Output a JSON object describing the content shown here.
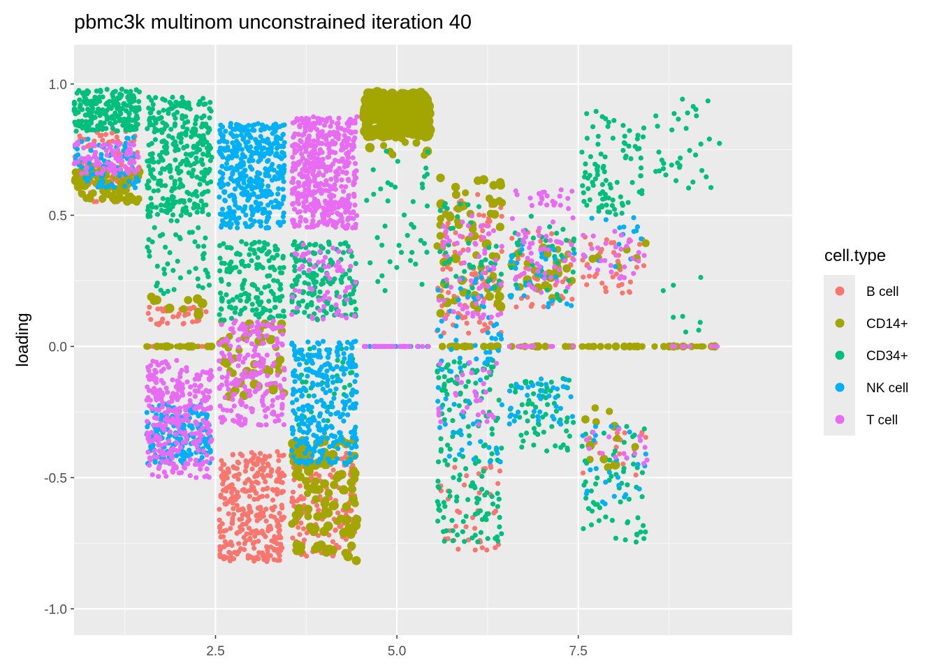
{
  "chart_data": {
    "type": "scatter",
    "title": "pbmc3k multinom unconstrained iteration 40",
    "xlabel": "",
    "ylabel": "loading",
    "xlim": [
      0.55,
      10.45
    ],
    "ylim": [
      -1.1,
      1.15
    ],
    "x_ticks": [
      2.5,
      5.0,
      7.5
    ],
    "x_tick_labels": [
      "2.5",
      "5.0",
      "7.5"
    ],
    "y_ticks": [
      1.0,
      0.5,
      0.0,
      -0.5,
      -1.0
    ],
    "y_tick_labels": [
      "1.0",
      "0.5",
      "0.0",
      "-0.5",
      "-1.0"
    ],
    "grid": true,
    "legend": {
      "title": "cell.type",
      "placement": "right",
      "entries": [
        {
          "label": "B cell",
          "color": "#F8766D"
        },
        {
          "label": "CD14+",
          "color": "#A3A500"
        },
        {
          "label": "CD34+",
          "color": "#00BF7D"
        },
        {
          "label": "NK cell",
          "color": "#00B0F6"
        },
        {
          "label": "T cell",
          "color": "#E76BF3"
        }
      ]
    },
    "colors": {
      "panel_bg": "#EBEBEB",
      "grid_major": "#FFFFFF",
      "grid_minor": "#F7F7F7"
    },
    "jitter_width": 0.45,
    "series": [
      {
        "name": "B cell",
        "color": "#F8766D",
        "clusters": [
          {
            "x": 1,
            "y": [
              0.55,
              0.82
            ],
            "n": 110
          },
          {
            "x": 2,
            "y": [
              0.08,
              0.15
            ],
            "n": 40
          },
          {
            "x": 2,
            "y": [
              0.0,
              0.0
            ],
            "n": 18
          },
          {
            "x": 3,
            "y": [
              -0.82,
              -0.4
            ],
            "n": 320
          },
          {
            "x": 4,
            "y": [
              -0.8,
              -0.4
            ],
            "n": 170
          },
          {
            "x": 6,
            "y": [
              0.05,
              0.6
            ],
            "n": 120
          },
          {
            "x": 6,
            "y": [
              -0.78,
              -0.45
            ],
            "n": 40
          },
          {
            "x": 7,
            "y": [
              0.15,
              0.45
            ],
            "n": 40
          },
          {
            "x": 8,
            "y": [
              0.2,
              0.42
            ],
            "n": 40
          },
          {
            "x": 8,
            "y": [
              -0.5,
              -0.3
            ],
            "n": 18
          }
        ]
      },
      {
        "name": "CD14+",
        "color": "#A3A500",
        "clusters": [
          {
            "x": 1,
            "y": [
              0.55,
              0.68
            ],
            "n": 70,
            "size": 7
          },
          {
            "x": 2,
            "y": [
              0.12,
              0.2
            ],
            "n": 10,
            "size": 7
          },
          {
            "x": 2,
            "y": [
              0.0,
              0.0
            ],
            "n": 25,
            "size": 6
          },
          {
            "x": 3,
            "y": [
              -0.2,
              0.1
            ],
            "n": 50,
            "size": 7
          },
          {
            "x": 4,
            "y": [
              -0.82,
              -0.35
            ],
            "n": 110,
            "size": 7
          },
          {
            "x": 5,
            "y": [
              0.8,
              0.97
            ],
            "n": 240,
            "size": 8
          },
          {
            "x": 5,
            "y": [
              0.72,
              0.8
            ],
            "n": 10,
            "size": 7
          },
          {
            "x": 6,
            "y": [
              0.1,
              0.65
            ],
            "n": 60,
            "size": 7
          },
          {
            "x": 6,
            "y": [
              0.0,
              0.0
            ],
            "n": 18,
            "size": 6
          },
          {
            "x": 7,
            "y": [
              0.18,
              0.38
            ],
            "n": 25,
            "size": 7
          },
          {
            "x": 7,
            "y": [
              0.0,
              0.0
            ],
            "n": 18,
            "size": 6
          },
          {
            "x": 8,
            "y": [
              0.3,
              0.4
            ],
            "n": 6,
            "size": 7
          },
          {
            "x": 8,
            "y": [
              0.0,
              0.0
            ],
            "n": 18,
            "size": 6
          },
          {
            "x": 8,
            "y": [
              -0.48,
              -0.22
            ],
            "n": 12,
            "size": 7
          },
          {
            "x": 9,
            "y": [
              0.0,
              0.0
            ],
            "n": 22,
            "size": 6
          }
        ]
      },
      {
        "name": "CD34+",
        "color": "#00BF7D",
        "clusters": [
          {
            "x": 1,
            "y": [
              0.82,
              0.98
            ],
            "n": 220
          },
          {
            "x": 2,
            "y": [
              0.5,
              0.95
            ],
            "n": 320
          },
          {
            "x": 2,
            "y": [
              0.2,
              0.5
            ],
            "n": 50
          },
          {
            "x": 3,
            "y": [
              0.1,
              0.4
            ],
            "n": 160
          },
          {
            "x": 4,
            "y": [
              0.1,
              0.4
            ],
            "n": 160
          },
          {
            "x": 4,
            "y": [
              -0.3,
              0.0
            ],
            "n": 40
          },
          {
            "x": 5,
            "y": [
              0.2,
              0.75
            ],
            "n": 40
          },
          {
            "x": 6,
            "y": [
              -0.75,
              -0.05
            ],
            "n": 160
          },
          {
            "x": 6,
            "y": [
              0.2,
              0.55
            ],
            "n": 40
          },
          {
            "x": 7,
            "y": [
              -0.4,
              -0.12
            ],
            "n": 60
          },
          {
            "x": 7,
            "y": [
              0.15,
              0.5
            ],
            "n": 40
          },
          {
            "x": 8,
            "y": [
              0.5,
              0.9
            ],
            "n": 90
          },
          {
            "x": 8,
            "y": [
              -0.75,
              -0.3
            ],
            "n": 60
          },
          {
            "x": 9,
            "y": [
              0.6,
              0.95
            ],
            "n": 35
          },
          {
            "x": 9,
            "y": [
              0.02,
              0.3
            ],
            "n": 8
          }
        ]
      },
      {
        "name": "NK cell",
        "color": "#00B0F6",
        "clusters": [
          {
            "x": 1,
            "y": [
              0.6,
              0.8
            ],
            "n": 80
          },
          {
            "x": 2,
            "y": [
              -0.45,
              -0.22
            ],
            "n": 190
          },
          {
            "x": 3,
            "y": [
              0.45,
              0.85
            ],
            "n": 420
          },
          {
            "x": 4,
            "y": [
              -0.45,
              0.02
            ],
            "n": 300
          },
          {
            "x": 5,
            "y": [
              0.0,
              0.0
            ],
            "n": 15
          },
          {
            "x": 6,
            "y": [
              -0.45,
              0.3
            ],
            "n": 80
          },
          {
            "x": 7,
            "y": [
              -0.3,
              -0.12
            ],
            "n": 40
          },
          {
            "x": 7,
            "y": [
              0.15,
              0.4
            ],
            "n": 30
          },
          {
            "x": 8,
            "y": [
              -0.6,
              -0.3
            ],
            "n": 25
          },
          {
            "x": 8,
            "y": [
              0.3,
              0.5
            ],
            "n": 15
          }
        ]
      },
      {
        "name": "T cell",
        "color": "#E76BF3",
        "clusters": [
          {
            "x": 1,
            "y": [
              0.65,
              0.78
            ],
            "n": 80
          },
          {
            "x": 2,
            "y": [
              -0.5,
              -0.05
            ],
            "n": 300
          },
          {
            "x": 3,
            "y": [
              -0.3,
              0.1
            ],
            "n": 200
          },
          {
            "x": 4,
            "y": [
              0.45,
              0.88
            ],
            "n": 480
          },
          {
            "x": 4,
            "y": [
              0.1,
              0.4
            ],
            "n": 60
          },
          {
            "x": 5,
            "y": [
              0.0,
              0.0
            ],
            "n": 25
          },
          {
            "x": 6,
            "y": [
              0.1,
              0.5
            ],
            "n": 60
          },
          {
            "x": 6,
            "y": [
              -0.3,
              -0.05
            ],
            "n": 30
          },
          {
            "x": 7,
            "y": [
              0.2,
              0.6
            ],
            "n": 70
          },
          {
            "x": 7,
            "y": [
              0.0,
              0.0
            ],
            "n": 10
          },
          {
            "x": 8,
            "y": [
              0.25,
              0.45
            ],
            "n": 30
          },
          {
            "x": 8,
            "y": [
              -0.45,
              -0.3
            ],
            "n": 15
          },
          {
            "x": 9,
            "y": [
              0.0,
              0.0
            ],
            "n": 10
          }
        ]
      }
    ]
  }
}
